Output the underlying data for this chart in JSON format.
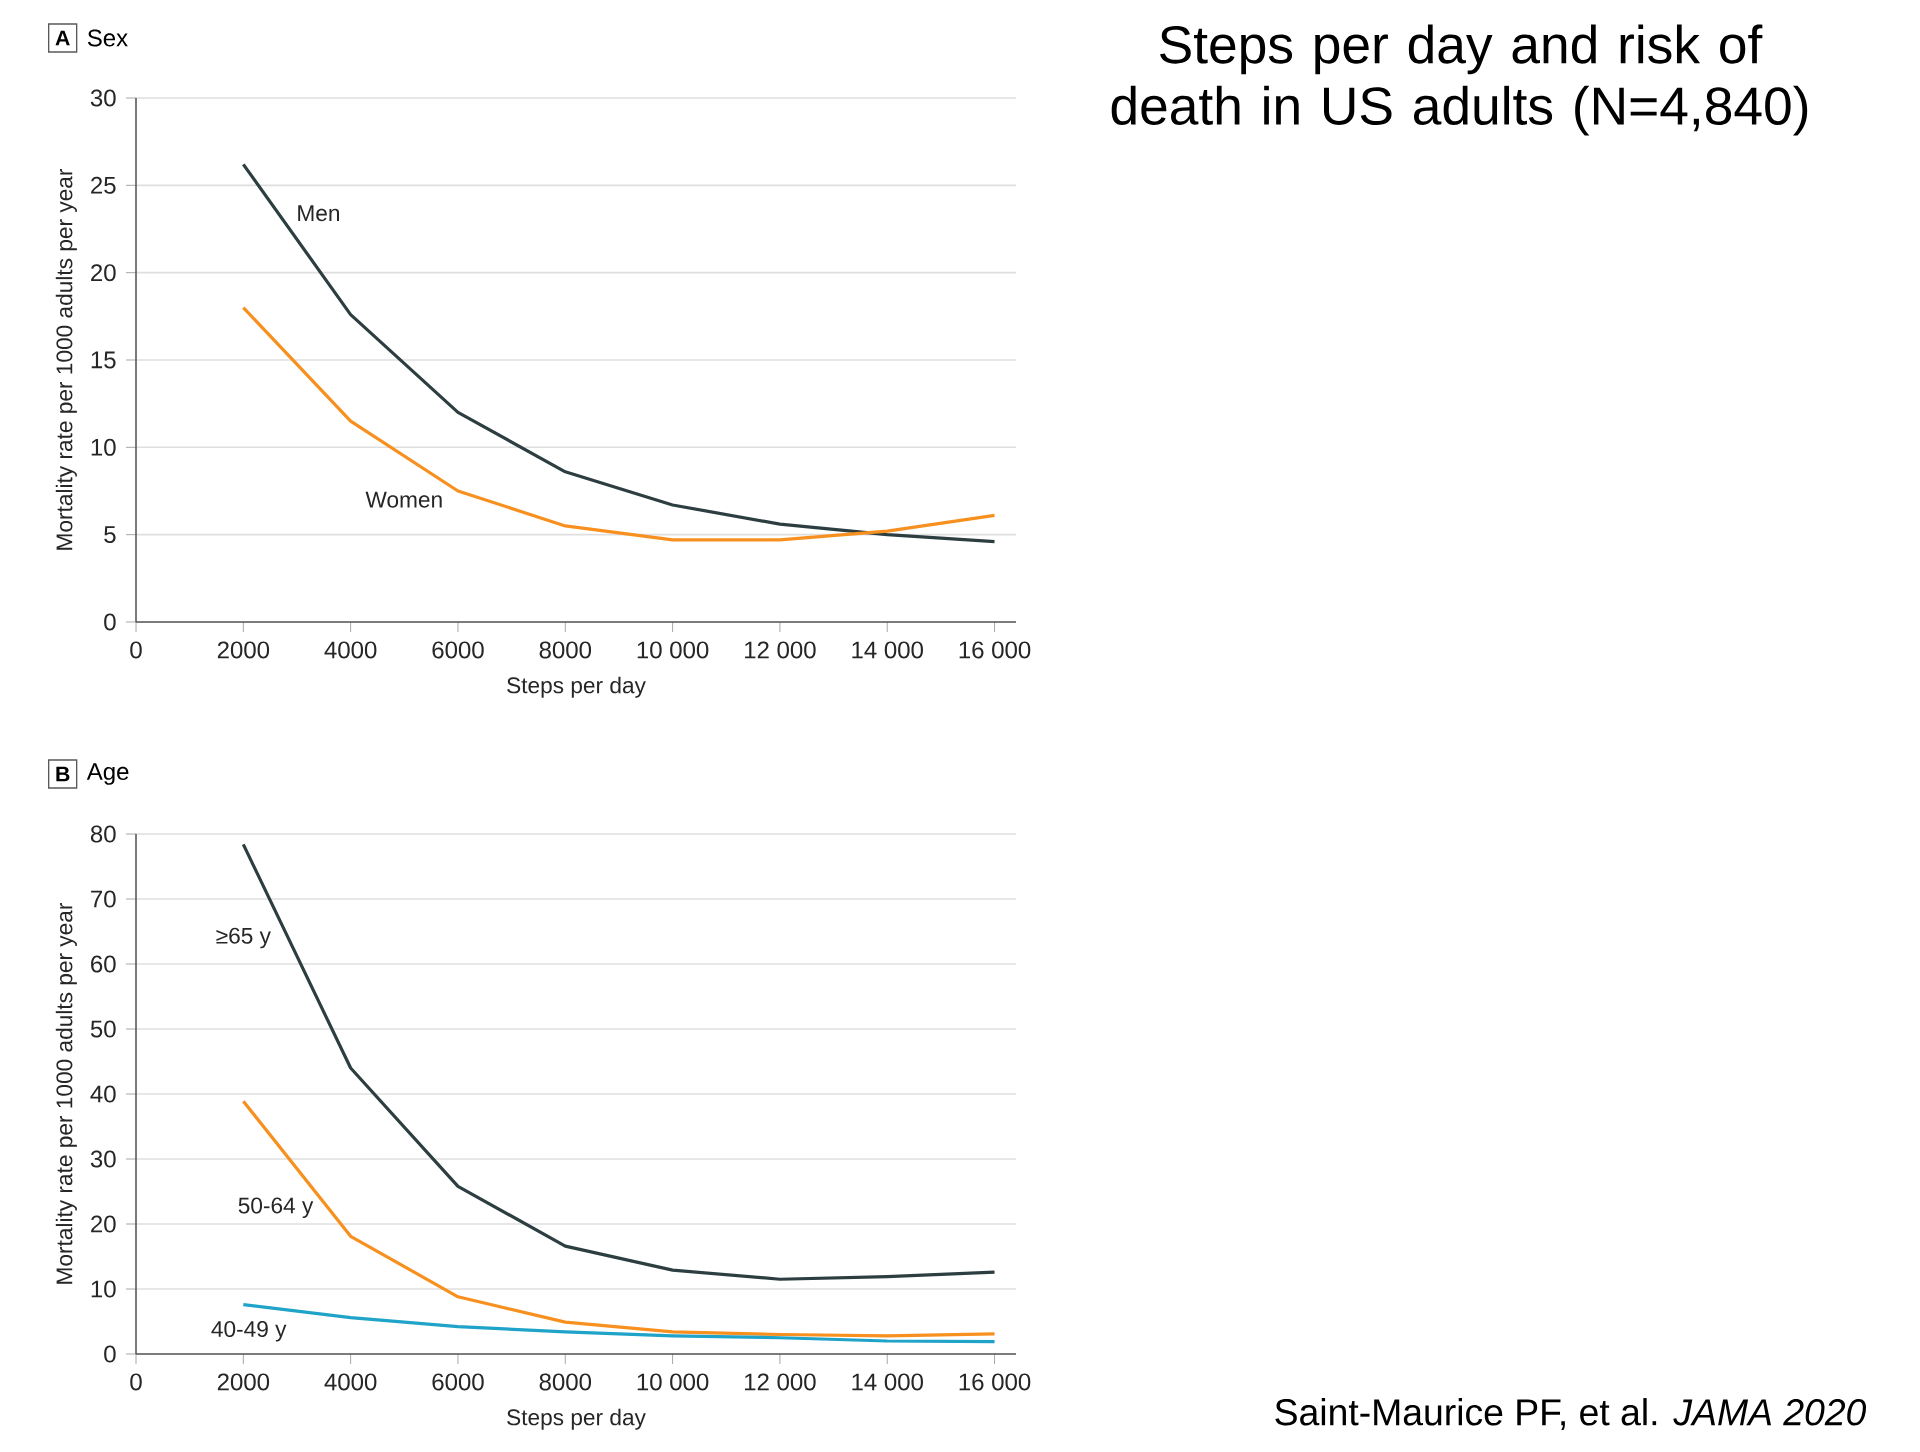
{
  "chart_data": [
    {
      "type": "line",
      "title": "Sex",
      "xlabel": "Steps per day",
      "ylabel": "Mortality rate per 1000 adults per year",
      "annotations": [
        "A",
        "Steps per day and risk of death in US adults (N=4,840)"
      ],
      "x": [
        2000,
        4000,
        6000,
        8000,
        10000,
        12000,
        14000,
        16000
      ],
      "series": [
        {
          "name": "Men",
          "color": "#2d3e40",
          "values": [
            26.2,
            17.6,
            12.0,
            8.6,
            6.7,
            5.6,
            5.0,
            4.6
          ]
        },
        {
          "name": "Women",
          "color": "#f7901e",
          "values": [
            18.0,
            11.5,
            7.5,
            5.5,
            4.7,
            4.7,
            5.2,
            6.1
          ]
        }
      ],
      "xlim": [
        0,
        16400
      ],
      "ylim": [
        0,
        30
      ],
      "xticks": [
        0,
        2000,
        4000,
        6000,
        8000,
        {
          "value": 10000,
          "label": "10 000"
        },
        {
          "value": 12000,
          "label": "12 000"
        },
        {
          "value": 14000,
          "label": "14 000"
        },
        {
          "value": 16000,
          "label": "16 000"
        }
      ],
      "yticks": [
        0,
        5,
        10,
        15,
        20,
        25,
        30
      ],
      "grid": "y",
      "legend": false,
      "marker": "none",
      "line_style": "solid"
    },
    {
      "type": "line",
      "title": "Age",
      "xlabel": "Steps per day",
      "ylabel": "Mortality rate per 1000 adults per year",
      "annotations": [
        "B",
        "Saint-Maurice PF, et al. *JAMA 2020*"
      ],
      "x": [
        2000,
        4000,
        6000,
        8000,
        10000,
        12000,
        14000,
        16000
      ],
      "series": [
        {
          "name": "≥65 y",
          "color": "#2d3e40",
          "values": [
            78.4,
            44.0,
            25.8,
            16.6,
            12.9,
            11.5,
            11.9,
            12.6
          ]
        },
        {
          "name": "50-64 y",
          "color": "#f7901e",
          "values": [
            38.9,
            18.1,
            8.8,
            4.9,
            3.4,
            3.0,
            2.8,
            3.1
          ]
        },
        {
          "name": "40-49 y",
          "color": "#1fa3c9",
          "values": [
            7.6,
            5.6,
            4.2,
            3.4,
            2.8,
            2.5,
            2.0,
            1.9
          ]
        }
      ],
      "xlim": [
        0,
        16400
      ],
      "ylim": [
        0,
        80
      ],
      "xticks": [
        0,
        2000,
        4000,
        6000,
        8000,
        {
          "value": 10000,
          "label": "10 000"
        },
        {
          "value": 12000,
          "label": "12 000"
        },
        {
          "value": 14000,
          "label": "14 000"
        },
        {
          "value": 16000,
          "label": "16 000"
        }
      ],
      "yticks": [
        0,
        10,
        20,
        30,
        40,
        50,
        60,
        70,
        80
      ],
      "grid": "y",
      "legend": false,
      "marker": "none",
      "line_style": "solid"
    }
  ]
}
